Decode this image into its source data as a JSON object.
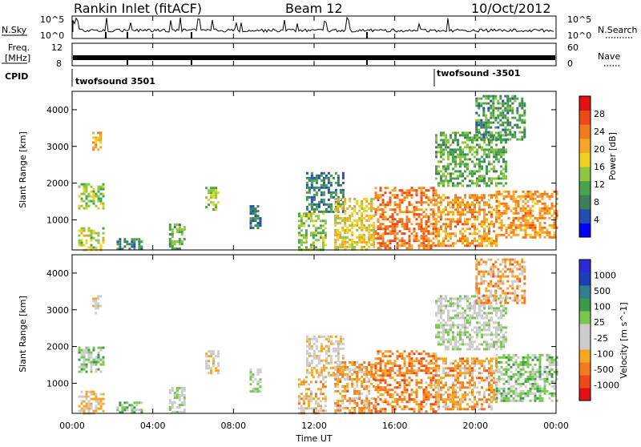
{
  "header": {
    "station": "Rankin Inlet (fitACF)",
    "beam": "Beam 12",
    "date": "10/Oct/2012"
  },
  "top_panels": {
    "nsky_label": "N.Sky",
    "nsky_ticks": [
      "10^5",
      "10^0"
    ],
    "nsky_right_ticks": [
      "10^5",
      "10^0"
    ],
    "nsearch_label": "N.Search",
    "freq_label_1": "Freq.",
    "freq_label_2": "[MHz]",
    "freq_ticks": [
      "12",
      "8"
    ],
    "nave_ticks": [
      "60",
      "0"
    ],
    "nave_label": "Nave",
    "cpid_label": "CPID",
    "cpid_segments": [
      "twofsound 3501",
      "twofsound -3501"
    ]
  },
  "x_axis": {
    "label": "Time UT",
    "ticks": [
      "00:00",
      "04:00",
      "08:00",
      "12:00",
      "16:00",
      "20:00",
      "00:00"
    ]
  },
  "colors": {
    "power_scale": [
      "#0000ff",
      "#234fb0",
      "#3d7f58",
      "#48a44c",
      "#8ec63f",
      "#f0d020",
      "#f5a623",
      "#f47a1f",
      "#ee4a18",
      "#e31212"
    ],
    "velocity_scale": [
      "#e31212",
      "#ee4a18",
      "#f47a1f",
      "#f5a623",
      "#cccccc",
      "#cccccc",
      "#78c850",
      "#3d9a4a",
      "#2f7f90",
      "#1c3fb8",
      "#2a2ad8"
    ]
  },
  "chart_data": [
    {
      "type": "heatmap",
      "title": "",
      "xlabel": "",
      "ylabel": "Slant Range [km]",
      "xlim": [
        0,
        24
      ],
      "ylim": [
        180,
        4500
      ],
      "yticks": [
        "1000",
        "2000",
        "3000",
        "4000"
      ],
      "colorbar": {
        "label": "Power [dB]",
        "range": [
          0,
          32
        ],
        "ticks": [
          "28",
          "24",
          "20",
          "16",
          "12",
          "8",
          "4"
        ]
      },
      "regions": [
        {
          "t": [
            0.3,
            1.5
          ],
          "r": [
            1300,
            2000
          ],
          "v": 14
        },
        {
          "t": [
            0.3,
            1.5
          ],
          "r": [
            200,
            800
          ],
          "v": 16
        },
        {
          "t": [
            1.0,
            1.4
          ],
          "r": [
            2900,
            3400
          ],
          "v": 22
        },
        {
          "t": [
            2.2,
            3.4
          ],
          "r": [
            200,
            500
          ],
          "v": 8
        },
        {
          "t": [
            4.8,
            5.6
          ],
          "r": [
            200,
            900
          ],
          "v": 12
        },
        {
          "t": [
            6.6,
            7.2
          ],
          "r": [
            1300,
            1900
          ],
          "v": 14
        },
        {
          "t": [
            8.8,
            9.3
          ],
          "r": [
            800,
            1400
          ],
          "v": 8
        },
        {
          "t": [
            11.2,
            12.6
          ],
          "r": [
            200,
            1200
          ],
          "v": 14
        },
        {
          "t": [
            11.6,
            13.5
          ],
          "r": [
            1200,
            2300
          ],
          "v": 8
        },
        {
          "t": [
            13.0,
            15.0
          ],
          "r": [
            200,
            1600
          ],
          "v": 18
        },
        {
          "t": [
            15.0,
            18.0
          ],
          "r": [
            200,
            1900
          ],
          "v": 24
        },
        {
          "t": [
            18.0,
            21.0
          ],
          "r": [
            300,
            1700
          ],
          "v": 22
        },
        {
          "t": [
            18.0,
            21.5
          ],
          "r": [
            1900,
            3400
          ],
          "v": 12
        },
        {
          "t": [
            21.0,
            24.0
          ],
          "r": [
            500,
            1800
          ],
          "v": 22
        },
        {
          "t": [
            20.0,
            22.5
          ],
          "r": [
            3200,
            4400
          ],
          "v": 10
        }
      ]
    },
    {
      "type": "heatmap",
      "title": "",
      "xlabel": "Time UT",
      "ylabel": "Slant Range [km]",
      "xlim": [
        0,
        24
      ],
      "ylim": [
        180,
        4500
      ],
      "yticks": [
        "1000",
        "2000",
        "3000",
        "4000"
      ],
      "colorbar": {
        "label": "Velocity [m s^-1]",
        "range": [
          -1000,
          1000
        ],
        "ticks": [
          "1000",
          "500",
          "100",
          "25",
          "-25",
          "-100",
          "-500",
          "-1000"
        ]
      },
      "regions": [
        {
          "t": [
            0.3,
            1.5
          ],
          "r": [
            1300,
            2000
          ],
          "v": 150
        },
        {
          "t": [
            0.3,
            1.5
          ],
          "r": [
            200,
            800
          ],
          "v": -200
        },
        {
          "t": [
            1.0,
            1.4
          ],
          "r": [
            2900,
            3400
          ],
          "v": -150
        },
        {
          "t": [
            2.2,
            3.4
          ],
          "r": [
            200,
            500
          ],
          "v": 200
        },
        {
          "t": [
            4.8,
            5.6
          ],
          "r": [
            200,
            900
          ],
          "v": 0
        },
        {
          "t": [
            6.6,
            7.2
          ],
          "r": [
            1300,
            1900
          ],
          "v": -150
        },
        {
          "t": [
            8.8,
            9.3
          ],
          "r": [
            800,
            1400
          ],
          "v": 0
        },
        {
          "t": [
            11.2,
            12.6
          ],
          "r": [
            200,
            1200
          ],
          "v": -300
        },
        {
          "t": [
            11.6,
            13.5
          ],
          "r": [
            1200,
            2300
          ],
          "v": -200
        },
        {
          "t": [
            13.0,
            15.0
          ],
          "r": [
            200,
            1600
          ],
          "v": -400
        },
        {
          "t": [
            15.0,
            18.0
          ],
          "r": [
            200,
            1900
          ],
          "v": -500
        },
        {
          "t": [
            18.0,
            21.0
          ],
          "r": [
            300,
            1700
          ],
          "v": -400
        },
        {
          "t": [
            18.0,
            21.5
          ],
          "r": [
            1900,
            3400
          ],
          "v": 0
        },
        {
          "t": [
            21.0,
            24.0
          ],
          "r": [
            500,
            1800
          ],
          "v": 150
        },
        {
          "t": [
            20.0,
            22.5
          ],
          "r": [
            3200,
            4400
          ],
          "v": -400
        }
      ]
    }
  ]
}
